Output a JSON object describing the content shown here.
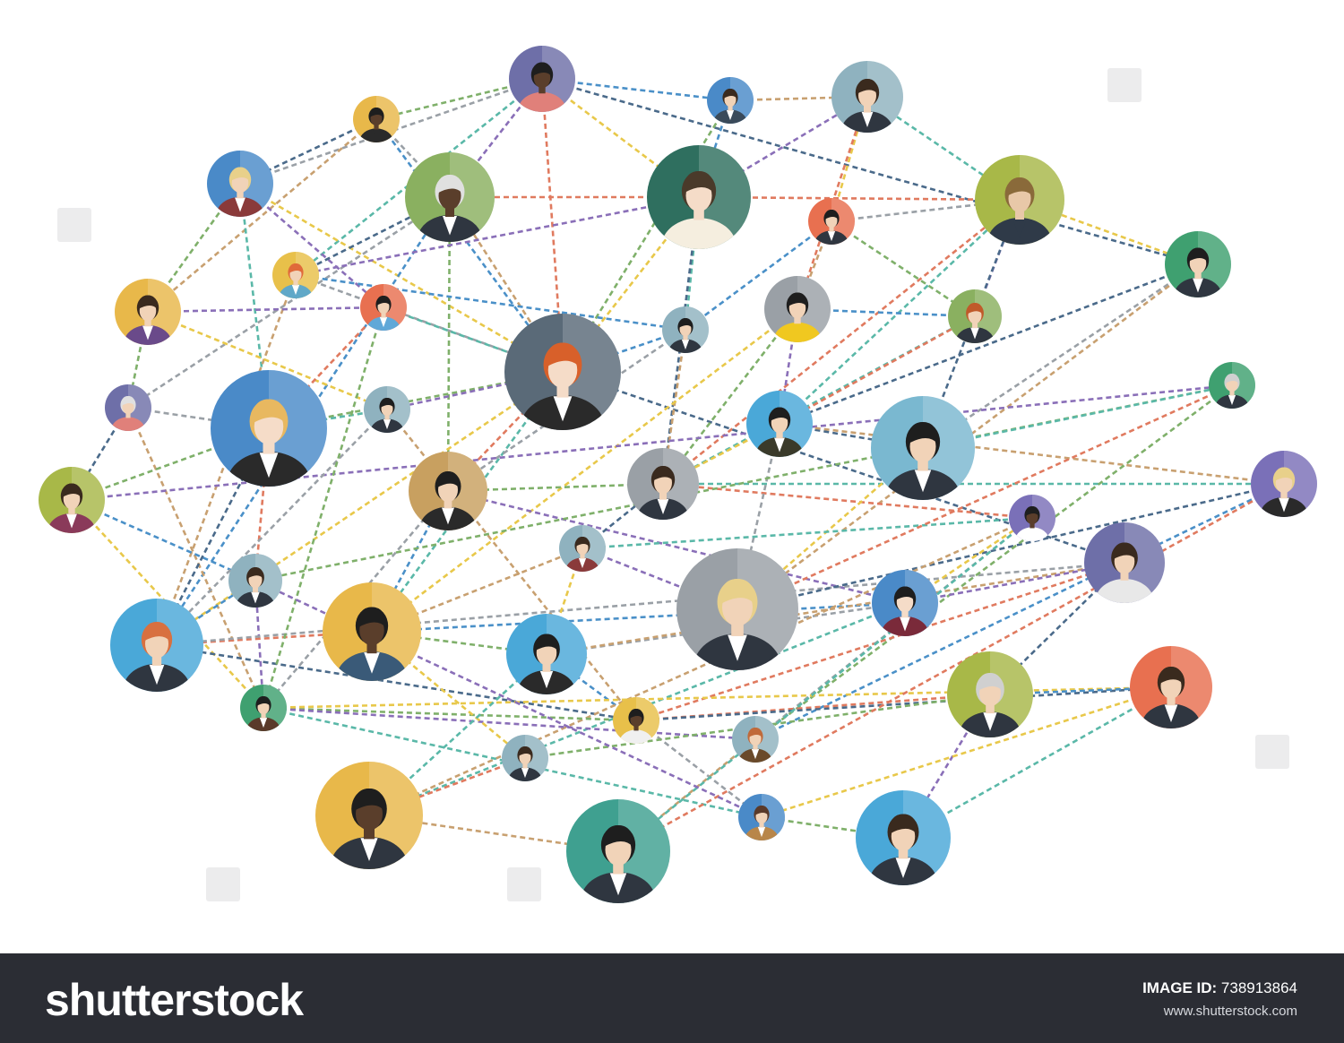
{
  "footer": {
    "logo_text": "shutterstock",
    "image_id_label": "IMAGE ID:",
    "image_id": "738913864",
    "site": "www.shutterstock.com"
  },
  "colors": {
    "footer_bg": "#2b2d34",
    "edge_palette": [
      "#4a90c8",
      "#7fb06a",
      "#8a6fb8",
      "#e8c84a",
      "#5ab8a8",
      "#e07a5f",
      "#4a6a8a",
      "#9aa0a6",
      "#c8a070"
    ]
  },
  "network": {
    "people": [
      {
        "bg": "#6e6fa8",
        "skin": "#5a3e2b",
        "hair": "#1e1e1e",
        "suit": "#e0807a",
        "shirt": "#e0807a"
      },
      {
        "bg": "#4a8ac8",
        "skin": "#f1d3b8",
        "hair": "#3a2a1e",
        "suit": "#3a4a5a",
        "shirt": "#ffffff"
      },
      {
        "bg": "#8fb2bf",
        "skin": "#f1d3b8",
        "hair": "#3a2a1e",
        "suit": "#2f3640",
        "shirt": "#ffffff"
      },
      {
        "bg": "#e8b84a",
        "skin": "#5a3e2b",
        "hair": "#1e1e1e",
        "suit": "#2a2a2a",
        "shirt": "#2a2a2a"
      },
      {
        "bg": "#4a8ac8",
        "skin": "#f1d3b8",
        "hair": "#e8d08a",
        "suit": "#8a3a3a",
        "shirt": "#ffffff"
      },
      {
        "bg": "#8ab060",
        "skin": "#5a3e2b",
        "hair": "#e0e0e0",
        "suit": "#2f3640",
        "shirt": "#ffffff"
      },
      {
        "bg": "#2f6f5f",
        "skin": "#f5dcc8",
        "hair": "#4a3a2a",
        "suit": "#f5eedf",
        "shirt": "#f5eedf"
      },
      {
        "bg": "#e87050",
        "skin": "#f1d3b8",
        "hair": "#1e1e1e",
        "suit": "#2f3640",
        "shirt": "#ffffff"
      },
      {
        "bg": "#a8b848",
        "skin": "#e8c8a8",
        "hair": "#8a6a3a",
        "suit": "#2f3a48",
        "shirt": "#2f3a48"
      },
      {
        "bg": "#e8c04a",
        "skin": "#f1d3b8",
        "hair": "#e06a3a",
        "suit": "#60a8c8",
        "shirt": "#ffffff"
      },
      {
        "bg": "#e8b84a",
        "skin": "#f1d3b8",
        "hair": "#3a2a1e",
        "suit": "#6a4a8a",
        "shirt": "#ffffff"
      },
      {
        "bg": "#e87050",
        "skin": "#f1d3b8",
        "hair": "#1e1e1e",
        "suit": "#60a8d8",
        "shirt": "#ffffff"
      },
      {
        "bg": "#6e6fa8",
        "skin": "#f1d3b8",
        "hair": "#e0e0e0",
        "suit": "#e0807a",
        "shirt": "#e0807a"
      },
      {
        "bg": "#5a6a78",
        "skin": "#f5dcc8",
        "hair": "#d8602a",
        "suit": "#2a2a2a",
        "shirt": "#ffffff"
      },
      {
        "bg": "#8fb2bf",
        "skin": "#f1d3b8",
        "hair": "#1e1e1e",
        "suit": "#2f3640",
        "shirt": "#ffffff"
      },
      {
        "bg": "#9aa0a6",
        "skin": "#f1d3b8",
        "hair": "#1e1e1e",
        "suit": "#f0c820",
        "shirt": "#f0c820"
      },
      {
        "bg": "#8ab060",
        "skin": "#f1d3b8",
        "hair": "#c05a2a",
        "suit": "#2f3640",
        "shirt": "#ffffff"
      },
      {
        "bg": "#3fa070",
        "skin": "#f1d3b8",
        "hair": "#1e1e1e",
        "suit": "#2f3640",
        "shirt": "#ffffff"
      },
      {
        "bg": "#a8b848",
        "skin": "#f1d3b8",
        "hair": "#3a2a1e",
        "suit": "#8a3a5a",
        "shirt": "#ffffff"
      },
      {
        "bg": "#4a8ac8",
        "skin": "#f5dcc8",
        "hair": "#e8b860",
        "suit": "#2a2a2a",
        "shirt": "#ffffff"
      },
      {
        "bg": "#8fb2bf",
        "skin": "#f1d3b8",
        "hair": "#1e1e1e",
        "suit": "#2f3640",
        "shirt": "#ffffff"
      },
      {
        "bg": "#c8a060",
        "skin": "#f1d3b8",
        "hair": "#1e1e1e",
        "suit": "#2a2a2a",
        "shirt": "#ffffff"
      },
      {
        "bg": "#9aa0a6",
        "skin": "#f1d3b8",
        "hair": "#3a2a1e",
        "suit": "#2f3640",
        "shirt": "#ffffff"
      },
      {
        "bg": "#4aa8d8",
        "skin": "#f1d3b8",
        "hair": "#1e1e1e",
        "suit": "#3a3a2a",
        "shirt": "#ffffff"
      },
      {
        "bg": "#8fb2bf",
        "skin": "#f1d3b8",
        "hair": "#3a2a1e",
        "suit": "#2f3640",
        "shirt": "#ffffff"
      },
      {
        "bg": "#7ab8d0",
        "skin": "#f1d3b8",
        "hair": "#1e1e1e",
        "suit": "#2f3640",
        "shirt": "#ffffff"
      },
      {
        "bg": "#4aa8d8",
        "skin": "#f1d3b8",
        "hair": "#d87040",
        "suit": "#2f3640",
        "shirt": "#ffffff"
      },
      {
        "bg": "#e8b84a",
        "skin": "#5a3e2b",
        "hair": "#1e1e1e",
        "suit": "#3a5a78",
        "shirt": "#ffffff"
      },
      {
        "bg": "#8fb2bf",
        "skin": "#f1d3b8",
        "hair": "#3a2a1e",
        "suit": "#8a3a3a",
        "shirt": "#ffffff"
      },
      {
        "bg": "#9aa0a6",
        "skin": "#f1d3b8",
        "hair": "#e8d08a",
        "suit": "#2f3640",
        "shirt": "#ffffff"
      },
      {
        "bg": "#4aa8d8",
        "skin": "#f1d3b8",
        "hair": "#1e1e1e",
        "suit": "#2a2a2a",
        "shirt": "#ffffff"
      },
      {
        "bg": "#3fa070",
        "skin": "#f1d3b8",
        "hair": "#d0d0d0",
        "suit": "#2f3640",
        "shirt": "#ffffff"
      },
      {
        "bg": "#4a8ac8",
        "skin": "#f5dcc8",
        "hair": "#1e1e1e",
        "suit": "#7a2a3a",
        "shirt": "#ffffff"
      },
      {
        "bg": "#6e6fa8",
        "skin": "#f1d3b8",
        "hair": "#3a2a1e",
        "suit": "#e8e8e8",
        "shirt": "#e8e8e8"
      },
      {
        "bg": "#7a70b8",
        "skin": "#5a3e2b",
        "hair": "#1e1e1e",
        "suit": "#ffffff",
        "shirt": "#ffffff"
      },
      {
        "bg": "#7a70b8",
        "skin": "#f1d3b8",
        "hair": "#e8d08a",
        "suit": "#2a2a2a",
        "shirt": "#ffffff"
      },
      {
        "bg": "#3fa070",
        "skin": "#f1d3b8",
        "hair": "#1e1e1e",
        "suit": "#5a3a2a",
        "shirt": "#ffffff"
      },
      {
        "bg": "#e8c04a",
        "skin": "#5a3e2b",
        "hair": "#1e1e1e",
        "suit": "#f0f0f0",
        "shirt": "#f0f0f0"
      },
      {
        "bg": "#8fb2bf",
        "skin": "#f1d3b8",
        "hair": "#c06a3a",
        "suit": "#6a4a2a",
        "shirt": "#ffffff"
      },
      {
        "bg": "#a8b848",
        "skin": "#f1d3b8",
        "hair": "#d0d0d0",
        "suit": "#2f3640",
        "shirt": "#ffffff"
      },
      {
        "bg": "#e87050",
        "skin": "#f1d3b8",
        "hair": "#3a2a1e",
        "suit": "#2f3640",
        "shirt": "#ffffff"
      },
      {
        "bg": "#8fb2bf",
        "skin": "#f1d3b8",
        "hair": "#3a2a1e",
        "suit": "#2f3640",
        "shirt": "#ffffff"
      },
      {
        "bg": "#e8b84a",
        "skin": "#5a3e2b",
        "hair": "#1e1e1e",
        "suit": "#2f3640",
        "shirt": "#ffffff"
      },
      {
        "bg": "#3fa090",
        "skin": "#f1d3b8",
        "hair": "#1e1e1e",
        "suit": "#2f3640",
        "shirt": "#ffffff"
      },
      {
        "bg": "#4a8ac8",
        "skin": "#f1d3b8",
        "hair": "#5a3a2a",
        "suit": "#b8864a",
        "shirt": "#ffffff"
      },
      {
        "bg": "#4aa8d8",
        "skin": "#f1d3b8",
        "hair": "#3a2a1e",
        "suit": "#2f3640",
        "shirt": "#ffffff"
      },
      {
        "bg": "#a8b848",
        "skin": "#f1d3b8",
        "hair": "#3a2a1e",
        "suit": "#5a3a2a",
        "shirt": "#ffffff"
      },
      {
        "bg": "#d8b070",
        "skin": "#f1d3b8",
        "hair": "#8a6a3a",
        "suit": "#3a4a8a",
        "shirt": "#ffffff"
      }
    ],
    "edges": [
      [
        0,
        1
      ],
      [
        0,
        3
      ],
      [
        0,
        5
      ],
      [
        0,
        6
      ],
      [
        0,
        9
      ],
      [
        0,
        13
      ],
      [
        0,
        17
      ],
      [
        0,
        4
      ],
      [
        1,
        2
      ],
      [
        1,
        6
      ],
      [
        1,
        13
      ],
      [
        2,
        6
      ],
      [
        2,
        7
      ],
      [
        2,
        8
      ],
      [
        2,
        15
      ],
      [
        3,
        4
      ],
      [
        3,
        5
      ],
      [
        3,
        10
      ],
      [
        3,
        13
      ],
      [
        4,
        10
      ],
      [
        4,
        11
      ],
      [
        4,
        13
      ],
      [
        4,
        19
      ],
      [
        5,
        6
      ],
      [
        5,
        9
      ],
      [
        5,
        12
      ],
      [
        5,
        13
      ],
      [
        5,
        26
      ],
      [
        5,
        21
      ],
      [
        6,
        9
      ],
      [
        6,
        13
      ],
      [
        6,
        14
      ],
      [
        6,
        8
      ],
      [
        6,
        22
      ],
      [
        7,
        8
      ],
      [
        7,
        15
      ],
      [
        7,
        14
      ],
      [
        7,
        16
      ],
      [
        8,
        16
      ],
      [
        8,
        17
      ],
      [
        8,
        23
      ],
      [
        8,
        22
      ],
      [
        8,
        25
      ],
      [
        9,
        13
      ],
      [
        9,
        26
      ],
      [
        9,
        14
      ],
      [
        10,
        12
      ],
      [
        10,
        11
      ],
      [
        10,
        20
      ],
      [
        11,
        13
      ],
      [
        11,
        19
      ],
      [
        12,
        18
      ],
      [
        12,
        19
      ],
      [
        12,
        36
      ],
      [
        13,
        14
      ],
      [
        13,
        19
      ],
      [
        13,
        20
      ],
      [
        13,
        26
      ],
      [
        13,
        27
      ],
      [
        13,
        21
      ],
      [
        13,
        33
      ],
      [
        14,
        21
      ],
      [
        14,
        22
      ],
      [
        15,
        16
      ],
      [
        15,
        22
      ],
      [
        15,
        23
      ],
      [
        15,
        27
      ],
      [
        16,
        22
      ],
      [
        16,
        23
      ],
      [
        17,
        23
      ],
      [
        17,
        25
      ],
      [
        17,
        29
      ],
      [
        18,
        24
      ],
      [
        18,
        19
      ],
      [
        18,
        31
      ],
      [
        18,
        36
      ],
      [
        19,
        20
      ],
      [
        19,
        24
      ],
      [
        19,
        26
      ],
      [
        20,
        26
      ],
      [
        20,
        37
      ],
      [
        21,
        27
      ],
      [
        21,
        22
      ],
      [
        21,
        32
      ],
      [
        22,
        23
      ],
      [
        22,
        35
      ],
      [
        22,
        34
      ],
      [
        23,
        25
      ],
      [
        23,
        29
      ],
      [
        23,
        35
      ],
      [
        24,
        26
      ],
      [
        24,
        31
      ],
      [
        24,
        36
      ],
      [
        25,
        29
      ],
      [
        25,
        31
      ],
      [
        26,
        27
      ],
      [
        26,
        37
      ],
      [
        26,
        33
      ],
      [
        27,
        28
      ],
      [
        27,
        32
      ],
      [
        27,
        30
      ],
      [
        28,
        29
      ],
      [
        28,
        30
      ],
      [
        28,
        34
      ],
      [
        29,
        31
      ],
      [
        29,
        35
      ],
      [
        30,
        32
      ],
      [
        30,
        33
      ],
      [
        30,
        37
      ],
      [
        31,
        38
      ],
      [
        32,
        33
      ],
      [
        32,
        34
      ],
      [
        32,
        42
      ],
      [
        33,
        37
      ],
      [
        33,
        39
      ],
      [
        34,
        38
      ],
      [
        34,
        42
      ],
      [
        35,
        38
      ],
      [
        36,
        37
      ],
      [
        36,
        38
      ],
      [
        36,
        40
      ],
      [
        36,
        44
      ],
      [
        37,
        39
      ],
      [
        37,
        40
      ],
      [
        37,
        44
      ],
      [
        38,
        43
      ],
      [
        39,
        40
      ],
      [
        39,
        41
      ],
      [
        39,
        45
      ],
      [
        40,
        44
      ],
      [
        40,
        45
      ],
      [
        41,
        42
      ],
      [
        41,
        46
      ],
      [
        42,
        47
      ],
      [
        42,
        43
      ],
      [
        43,
        47
      ],
      [
        44,
        45
      ],
      [
        45,
        46
      ],
      [
        46,
        47
      ],
      [
        34,
        43
      ],
      [
        35,
        43
      ],
      [
        22,
        28
      ],
      [
        21,
        36
      ],
      [
        32,
        46
      ],
      [
        38,
        47
      ],
      [
        11,
        36
      ],
      [
        24,
        44
      ],
      [
        27,
        41
      ],
      [
        30,
        42
      ]
    ]
  }
}
